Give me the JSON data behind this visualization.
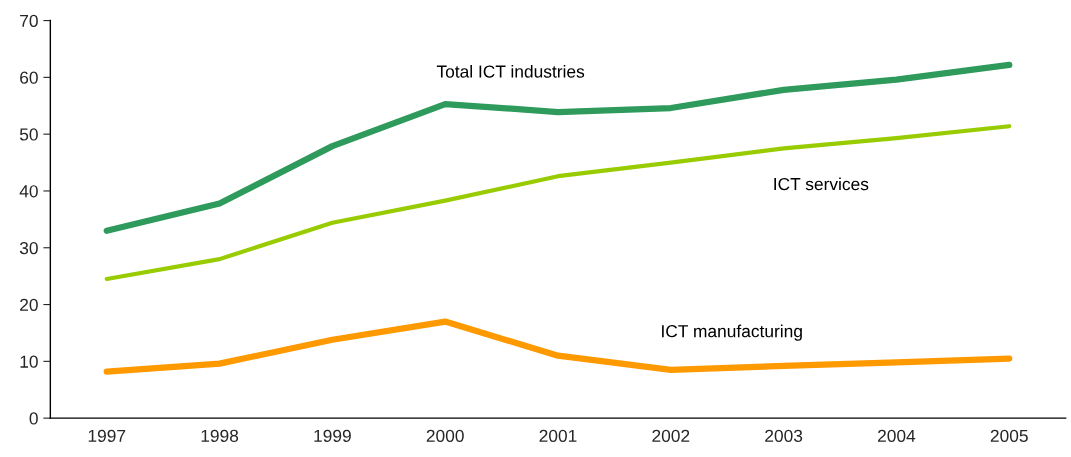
{
  "chart_data": {
    "type": "line",
    "categories": [
      "1997",
      "1998",
      "1999",
      "2000",
      "2001",
      "2002",
      "2003",
      "2004",
      "2005"
    ],
    "series": [
      {
        "name": "Total ICT industries",
        "color": "#2e9a5c",
        "values": [
          33.0,
          37.8,
          47.9,
          55.3,
          53.9,
          54.6,
          57.8,
          59.6,
          62.2
        ]
      },
      {
        "name": "ICT services",
        "color": "#99cc00",
        "values": [
          24.5,
          28.0,
          34.4,
          38.3,
          42.6,
          45.0,
          47.5,
          49.3,
          51.4
        ]
      },
      {
        "name": "ICT manufacturing",
        "color": "#ff9900",
        "values": [
          8.2,
          9.6,
          13.8,
          17.0,
          11.0,
          8.5,
          9.2,
          9.8,
          10.5
        ]
      }
    ],
    "ylim": [
      0,
      70
    ],
    "yticks": [
      0,
      10,
      20,
      30,
      40,
      50,
      60,
      70
    ],
    "grid": false,
    "legend": false,
    "marker": "none",
    "line_style": "solid"
  }
}
